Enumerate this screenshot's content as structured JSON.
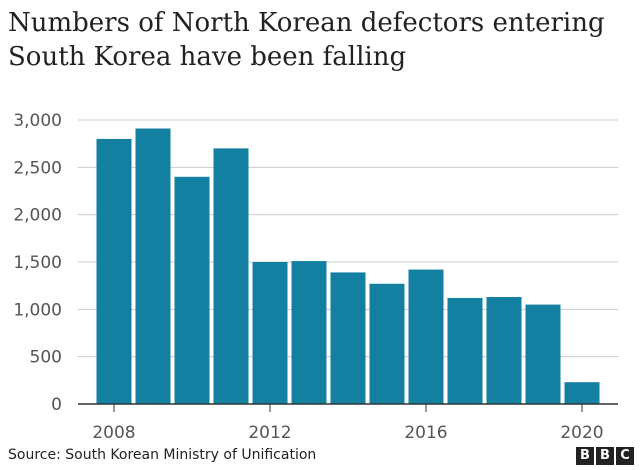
{
  "title": "Numbers of North Korean defectors entering South Korea have been falling",
  "source": "Source: South Korean Ministry of Unification",
  "logo": "BBC",
  "colors": {
    "bar": "#1380a1",
    "grid": "#cccccc",
    "axis": "#333333"
  },
  "chart_data": {
    "type": "bar",
    "title": "Numbers of North Korean defectors entering South Korea have been falling",
    "xlabel": "",
    "ylabel": "",
    "categories": [
      2008,
      2009,
      2010,
      2011,
      2012,
      2013,
      2014,
      2015,
      2016,
      2017,
      2018,
      2019,
      2020
    ],
    "values": [
      2800,
      2910,
      2400,
      2700,
      1500,
      1510,
      1390,
      1270,
      1420,
      1120,
      1130,
      1050,
      230
    ],
    "ylim": [
      0,
      3000
    ],
    "yticks": [
      0,
      500,
      1000,
      1500,
      2000,
      2500,
      3000
    ],
    "ytick_labels": [
      "0",
      "500",
      "1,000",
      "1,500",
      "2,000",
      "2,500",
      "3,000"
    ],
    "xticks": [
      2008,
      2012,
      2016,
      2020
    ],
    "xtick_labels": [
      "2008",
      "2012",
      "2016",
      "2020"
    ],
    "grid": true,
    "legend": "none"
  }
}
